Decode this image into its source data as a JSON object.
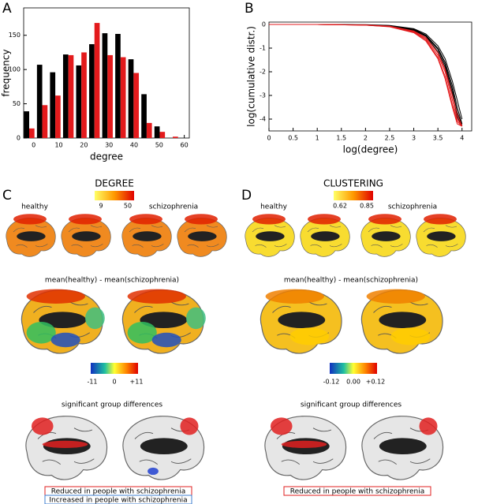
{
  "panel_labels": [
    "A",
    "B"
  ],
  "chart_data": [
    {
      "type": "bar",
      "xlabel": "degree",
      "ylabel": "frequency",
      "x": [
        -1.8,
        3.4,
        8.6,
        13.8,
        19,
        24.2,
        29.4,
        34.6,
        39.8,
        45,
        50.2,
        55.4
      ],
      "series": [
        {
          "color": "#000000",
          "values": [
            39,
            107,
            96,
            122,
            106,
            137,
            153,
            152,
            115,
            64,
            17,
            0
          ]
        },
        {
          "color": "#e31a1c",
          "values": [
            14,
            48,
            62,
            121,
            125,
            168,
            121,
            118,
            95,
            22,
            9,
            2
          ]
        }
      ],
      "xlim": [
        -4,
        62
      ],
      "xticks": [
        0,
        10,
        20,
        30,
        40,
        50,
        60
      ],
      "ylim": [
        0,
        190
      ],
      "yticks": [
        0,
        50,
        100,
        150
      ]
    },
    {
      "type": "line",
      "xlabel": "log(degree)",
      "ylabel": "log(cumulative distr.)",
      "x": [
        0,
        1,
        2,
        2.5,
        3,
        3.25,
        3.5,
        3.65,
        3.8,
        3.9,
        4.0
      ],
      "series": [
        {
          "color": "#000000",
          "values": [
            0,
            0,
            -0.02,
            -0.05,
            -0.2,
            -0.45,
            -1.0,
            -1.6,
            -2.6,
            -3.5,
            -4.2
          ]
        },
        {
          "color": "#000000",
          "values": [
            0,
            0,
            -0.02,
            -0.06,
            -0.25,
            -0.5,
            -1.15,
            -1.8,
            -2.9,
            -3.9,
            -4.3
          ]
        },
        {
          "color": "#000000",
          "values": [
            0,
            0,
            -0.01,
            -0.04,
            -0.18,
            -0.4,
            -0.9,
            -1.45,
            -2.4,
            -3.2,
            -4.0
          ]
        },
        {
          "color": "#000000",
          "values": [
            0,
            0,
            -0.02,
            -0.05,
            -0.22,
            -0.48,
            -1.05,
            -1.7,
            -2.75,
            -3.7,
            -4.25
          ]
        },
        {
          "color": "#e31a1c",
          "values": [
            0,
            0,
            -0.03,
            -0.08,
            -0.3,
            -0.6,
            -1.3,
            -2.0,
            -3.2,
            -4.0,
            -4.3
          ]
        },
        {
          "color": "#e31a1c",
          "values": [
            0,
            0,
            -0.03,
            -0.1,
            -0.35,
            -0.7,
            -1.45,
            -2.3,
            -3.5,
            -4.2,
            -4.3
          ]
        },
        {
          "color": "#e31a1c",
          "values": [
            0,
            0,
            -0.02,
            -0.07,
            -0.28,
            -0.55,
            -1.2,
            -1.9,
            -3.0,
            -3.8,
            -4.3
          ]
        },
        {
          "color": "#e31a1c",
          "values": [
            0,
            0,
            -0.03,
            -0.09,
            -0.32,
            -0.65,
            -1.4,
            -2.2,
            -3.4,
            -4.1,
            -4.3
          ]
        }
      ],
      "xlim": [
        0,
        4.2
      ],
      "xticks": [
        0,
        0.5,
        1,
        1.5,
        2,
        2.5,
        3,
        3.5,
        4
      ],
      "ylim": [
        -4.5,
        0.1
      ],
      "yticks": [
        -4,
        -3,
        -2,
        -1,
        0
      ]
    }
  ],
  "panels": {
    "C": {
      "label": "C",
      "title": "DEGREE",
      "healthy": "healthy",
      "schizophrenia": "schizophrenia",
      "scale_min": "9",
      "scale_max": "50",
      "diff_title": "mean(healthy) - mean(schizophrenia)",
      "diff_min": "-11",
      "diff_mid": "0",
      "diff_max": "+11",
      "sig_title": "significant group differences",
      "legend": [
        "Reduced in people with schizophrenia",
        "Increased in people with schizophrenia"
      ]
    },
    "D": {
      "label": "D",
      "title": "CLUSTERING",
      "healthy": "healthy",
      "schizophrenia": "schizophrenia",
      "scale_min": "0.62",
      "scale_max": "0.85",
      "diff_title": "mean(healthy) - mean(schizophrenia)",
      "diff_min": "-0.12",
      "diff_mid": "0.00",
      "diff_max": "+0.12",
      "sig_title": "significant group differences",
      "legend": [
        "Reduced in people with schizophrenia"
      ]
    }
  }
}
